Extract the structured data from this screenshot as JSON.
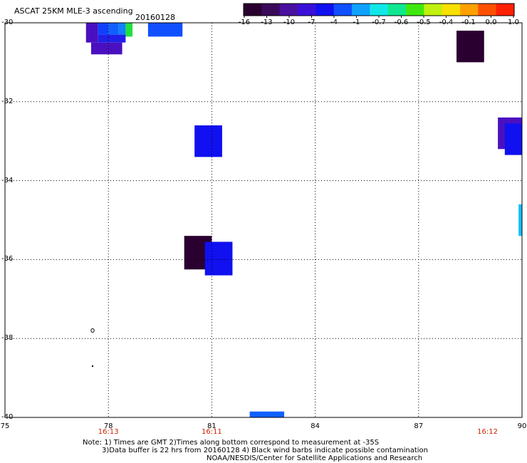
{
  "header": {
    "title": "ASCAT 25KM MLE-3 ascending",
    "date": "20160128"
  },
  "colorbar": {
    "labels": [
      "-16",
      "-13",
      "-10",
      "-7",
      "-4",
      "-1",
      "-0.7",
      "-0.6",
      "-0.5",
      "-0.4",
      "-0.1",
      "0.0",
      "1.0"
    ],
    "colors": [
      "#2a0030",
      "#3a0a5a",
      "#4a10a0",
      "#3a10d8",
      "#1010f0",
      "#1050ff",
      "#10a0ff",
      "#10e8e8",
      "#10e890",
      "#40e810",
      "#c0f010",
      "#f8e000",
      "#ffa000",
      "#ff5000",
      "#ff2000"
    ]
  },
  "axes": {
    "y_ticks": [
      "-30",
      "-32",
      "-34",
      "-36",
      "-38",
      "-40"
    ],
    "x_ticks": [
      "75",
      "78",
      "81",
      "84",
      "87",
      "90"
    ],
    "time_labels": [
      {
        "lon": 78,
        "text": "16:13"
      },
      {
        "lon": 81,
        "text": "16:11"
      },
      {
        "lon": 89,
        "text": "16:12"
      }
    ]
  },
  "cells": [
    {
      "lon0": 77.35,
      "lon1": 77.7,
      "lat0": -30.0,
      "lat1": -30.5,
      "color": "#4a10c0"
    },
    {
      "lon0": 77.7,
      "lon1": 78.0,
      "lat0": -30.0,
      "lat1": -30.3,
      "color": "#1040ff"
    },
    {
      "lon0": 78.0,
      "lon1": 78.3,
      "lat0": -30.0,
      "lat1": -30.3,
      "color": "#1060ff"
    },
    {
      "lon0": 78.3,
      "lon1": 78.5,
      "lat0": -30.0,
      "lat1": -30.3,
      "color": "#1080ff"
    },
    {
      "lon0": 78.5,
      "lon1": 78.7,
      "lat0": -30.0,
      "lat1": -30.35,
      "color": "#20e040"
    },
    {
      "lon0": 77.7,
      "lon1": 78.5,
      "lat0": -30.3,
      "lat1": -30.5,
      "color": "#2020e8"
    },
    {
      "lon0": 77.5,
      "lon1": 78.4,
      "lat0": -30.5,
      "lat1": -30.8,
      "color": "#4a10c0"
    },
    {
      "lon0": 79.15,
      "lon1": 80.15,
      "lat0": -30.0,
      "lat1": -30.35,
      "color": "#1050ff"
    },
    {
      "lon0": 88.1,
      "lon1": 88.9,
      "lat0": -30.2,
      "lat1": -31.0,
      "color": "#2a0030"
    },
    {
      "lon0": 80.5,
      "lon1": 81.3,
      "lat0": -32.6,
      "lat1": -33.4,
      "color": "#1010f0"
    },
    {
      "lon0": 89.3,
      "lon1": 90.0,
      "lat0": -32.4,
      "lat1": -33.2,
      "color": "#4a10c0"
    },
    {
      "lon0": 89.5,
      "lon1": 90.0,
      "lat0": -32.55,
      "lat1": -33.35,
      "color": "#1010f0"
    },
    {
      "lon0": 89.9,
      "lon1": 90.0,
      "lat0": -34.6,
      "lat1": -35.4,
      "color": "#10c0ff"
    },
    {
      "lon0": 80.2,
      "lon1": 81.0,
      "lat0": -35.4,
      "lat1": -36.25,
      "color": "#2a0030"
    },
    {
      "lon0": 80.8,
      "lon1": 81.6,
      "lat0": -35.55,
      "lat1": -36.4,
      "color": "#1010f0"
    },
    {
      "lon0": 82.1,
      "lon1": 83.1,
      "lat0": -39.85,
      "lat1": -40.0,
      "color": "#1060ff"
    }
  ],
  "footer": {
    "note_line1": "Note: 1) Times are GMT 2)Times along bottom correspond to measurement at -35S",
    "note_line2": "3)Data buffer is 22 hrs from 20160128 4) Black wind barbs indicate possible contamination",
    "note_line3": "NOAA/NESDIS/Center for Satellite Applications and Research"
  }
}
